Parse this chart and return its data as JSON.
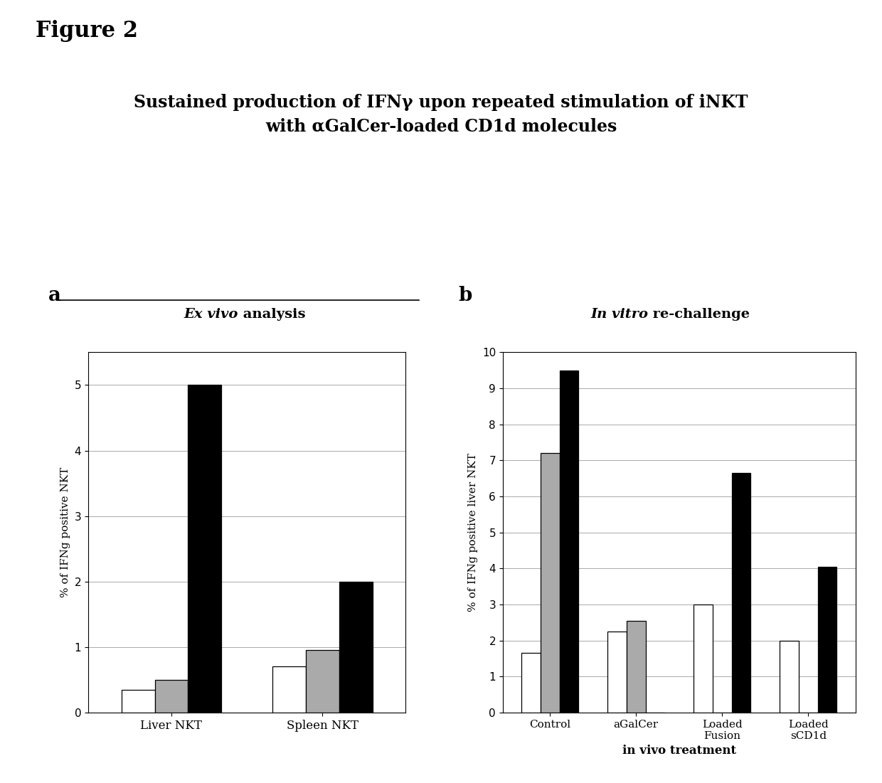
{
  "figure_title": "Figure 2",
  "main_title_line1": "Sustained production of IFNγ upon repeated stimulation of iNKT",
  "main_title_line2": "with αGalCer-loaded CD1d molecules",
  "panel_a_title_italic": "Ex vivo",
  "panel_a_title_normal": " analysis",
  "panel_a_ylabel": "% of IFNg positive NKT",
  "panel_a_categories": [
    "Liver NKT",
    "Spleen NKT"
  ],
  "panel_a_ylim": [
    0,
    5.5
  ],
  "panel_a_yticks": [
    0,
    1,
    2,
    3,
    4,
    5
  ],
  "panel_a_data": {
    "white": [
      0.35,
      0.7
    ],
    "gray": [
      0.5,
      0.95
    ],
    "black": [
      5.0,
      2.0
    ]
  },
  "panel_b_title_italic": "In vitro",
  "panel_b_title_normal": " re-challenge",
  "panel_b_ylabel": "% of IFNg positive liver NKT",
  "panel_b_xlabel": "in vivo treatment",
  "panel_b_categories": [
    "Control",
    "aGalCer",
    "Loaded\nFusion",
    "Loaded\nsCD1d"
  ],
  "panel_b_ylim": [
    0,
    10
  ],
  "panel_b_yticks": [
    0,
    1,
    2,
    3,
    4,
    5,
    6,
    7,
    8,
    9,
    10
  ],
  "panel_b_data": {
    "white": [
      1.65,
      2.25,
      3.0,
      2.0
    ],
    "gray": [
      7.2,
      2.55,
      0.0,
      0.0
    ],
    "black": [
      9.5,
      0.0,
      6.65,
      4.05
    ]
  },
  "bar_colors": [
    "white",
    "#aaaaaa",
    "black"
  ],
  "bar_edgecolor": "black",
  "background_color": "white",
  "panel_a_label": "a",
  "panel_b_label": "b"
}
